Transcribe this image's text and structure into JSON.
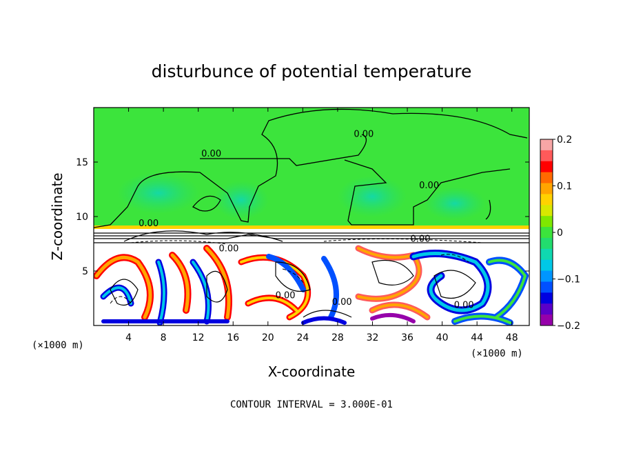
{
  "chart_data": {
    "type": "heatmap",
    "title": "disturbunce of potential temperature",
    "xlabel": "X-coordinate",
    "ylabel": "Z-coordinate",
    "x_unit_left": "(×1000 m)",
    "x_unit_right": "(×1000 m)",
    "xlim": [
      0,
      50
    ],
    "ylim": [
      0,
      20
    ],
    "x_ticks": [
      4,
      8,
      12,
      16,
      20,
      24,
      28,
      32,
      36,
      40,
      44,
      48
    ],
    "x_tick_labels": [
      "4",
      "8",
      "12",
      "16",
      "20",
      "24",
      "28",
      "32",
      "36",
      "40",
      "44",
      "48"
    ],
    "y_ticks": [
      5,
      10,
      15
    ],
    "y_tick_labels": [
      "5",
      "10",
      "15"
    ],
    "contour_interval_text": "CONTOUR INTERVAL = 3.000E-01",
    "contour_labels": [
      {
        "text": "0.00",
        "x": 13.5,
        "y": 15.5
      },
      {
        "text": "0.00",
        "x": 31.0,
        "y": 17.3
      },
      {
        "text": "0.00",
        "x": 38.5,
        "y": 12.6
      },
      {
        "text": "0.00",
        "x": 6.3,
        "y": 9.1
      },
      {
        "text": "0.00",
        "x": 15.5,
        "y": 6.8
      },
      {
        "text": "0.00",
        "x": 22.0,
        "y": 2.5
      },
      {
        "text": "0.00",
        "x": 28.5,
        "y": 1.9
      },
      {
        "text": "0.00",
        "x": 42.5,
        "y": 1.6
      },
      {
        "text": "0.00",
        "x": 37.5,
        "y": 7.7
      }
    ],
    "colorbar": {
      "min": -0.2,
      "max": 0.2,
      "tick_values": [
        0.2,
        0.1,
        0,
        -0.1,
        -0.2
      ],
      "tick_labels": [
        "0.2",
        "0.1",
        "0",
        "−0.1",
        "−0.2"
      ],
      "colors": [
        "#f7a6a6",
        "#ff5a5a",
        "#ff0000",
        "#ff6a00",
        "#ffa500",
        "#ffd200",
        "#d8e800",
        "#7fe800",
        "#3ce43c",
        "#22dc6e",
        "#10d8b0",
        "#00c8e6",
        "#0096ff",
        "#0050ff",
        "#0000e0",
        "#5a00c8",
        "#9600aa"
      ]
    }
  }
}
